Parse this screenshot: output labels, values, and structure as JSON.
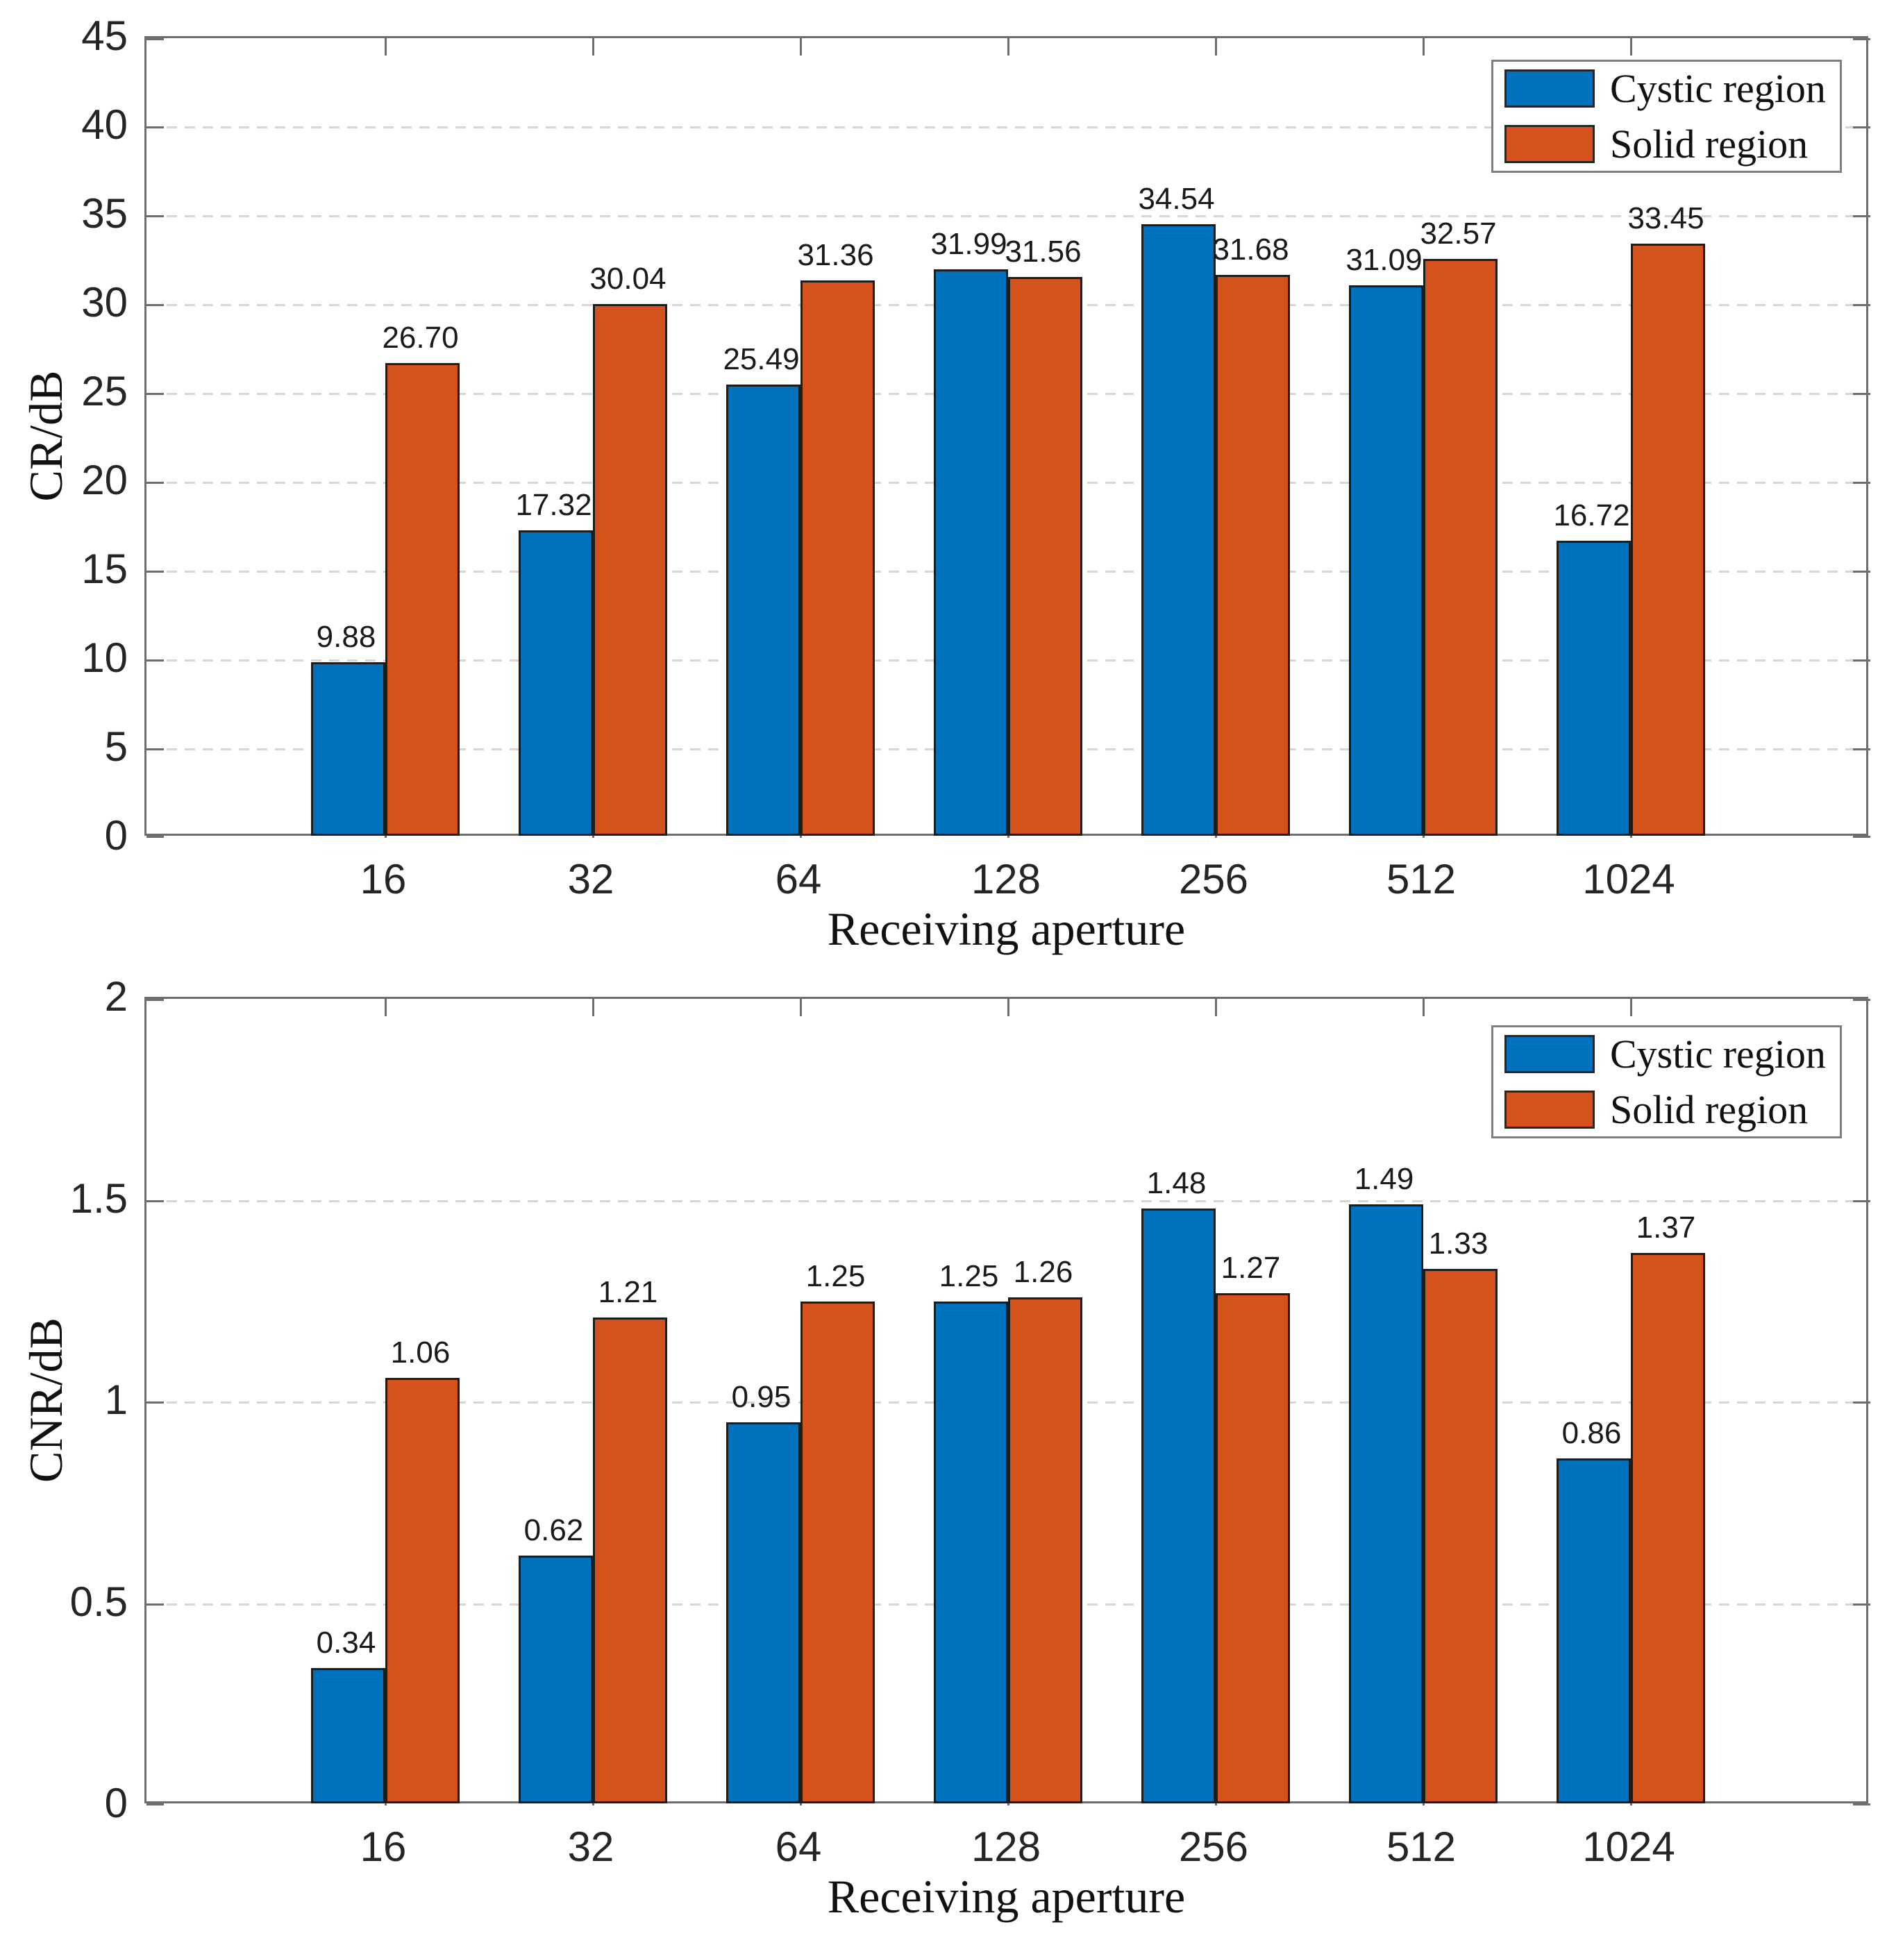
{
  "figure": {
    "background": "#ffffff"
  },
  "chart_data": [
    {
      "type": "bar",
      "title": "",
      "ylabel": "CR/dB",
      "xlabel": "Receiving aperture",
      "categories": [
        "16",
        "32",
        "64",
        "128",
        "256",
        "512",
        "1024"
      ],
      "series": [
        {
          "name": "Cystic region",
          "color": "#0072BD",
          "values": [
            9.88,
            17.32,
            25.49,
            31.99,
            34.54,
            31.09,
            16.72
          ]
        },
        {
          "name": "Solid region",
          "color": "#D4521B",
          "values": [
            26.7,
            30.04,
            31.36,
            31.56,
            31.68,
            32.57,
            33.45
          ]
        }
      ],
      "ylim": [
        0,
        45
      ],
      "yticks": [
        0,
        5,
        10,
        15,
        20,
        25,
        30,
        35,
        40,
        45
      ],
      "ytick_labels": [
        "0",
        "5",
        "10",
        "15",
        "20",
        "25",
        "30",
        "35",
        "40",
        "45"
      ],
      "grid": "y-dashed",
      "legend_position": "top-right",
      "value_label_decimals": 2
    },
    {
      "type": "bar",
      "title": "",
      "ylabel": "CNR/dB",
      "xlabel": "Receiving aperture",
      "categories": [
        "16",
        "32",
        "64",
        "128",
        "256",
        "512",
        "1024"
      ],
      "series": [
        {
          "name": "Cystic region",
          "color": "#0072BD",
          "values": [
            0.34,
            0.62,
            0.95,
            1.25,
            1.48,
            1.49,
            0.86
          ]
        },
        {
          "name": "Solid region",
          "color": "#D4521B",
          "values": [
            1.06,
            1.21,
            1.25,
            1.26,
            1.27,
            1.33,
            1.37
          ]
        }
      ],
      "ylim": [
        0,
        2
      ],
      "yticks": [
        0,
        0.5,
        1,
        1.5,
        2
      ],
      "ytick_labels": [
        "0",
        "0.5",
        "1",
        "1.5",
        "2"
      ],
      "grid": "y-dashed",
      "legend_position": "top-right",
      "value_label_decimals": 2
    }
  ]
}
